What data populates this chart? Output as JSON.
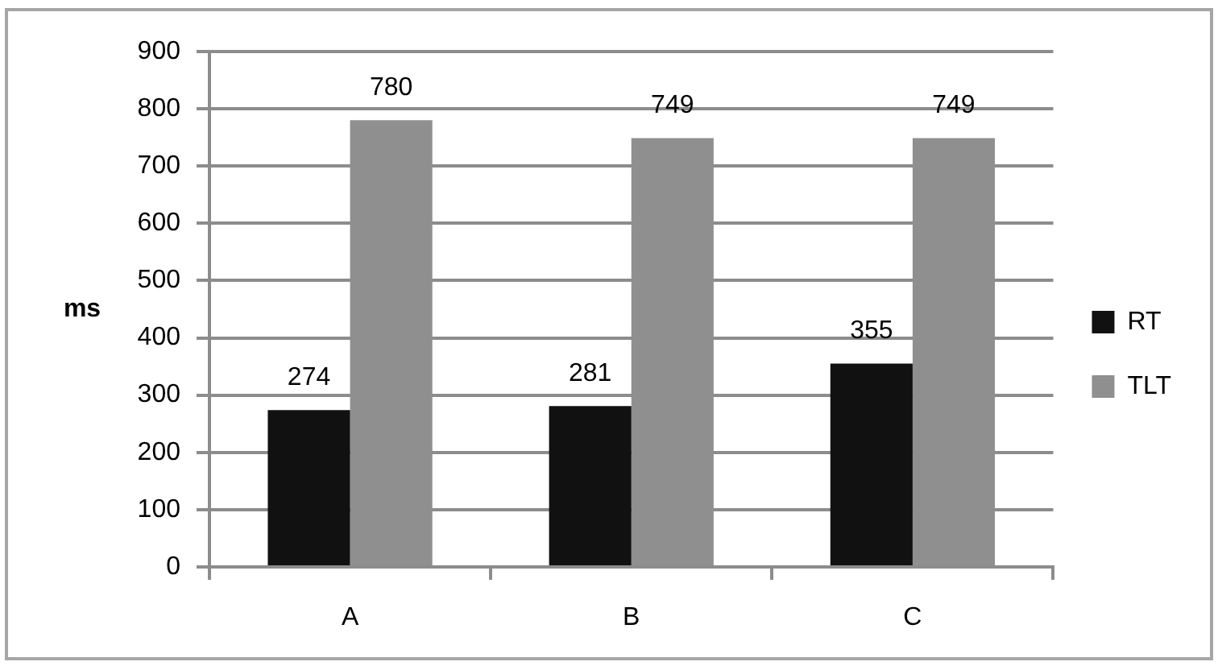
{
  "chart_data": {
    "type": "bar",
    "ylabel": "ms",
    "categories": [
      "A",
      "B",
      "C"
    ],
    "series": [
      {
        "name": "RT",
        "color": "#111111",
        "values": [
          274,
          281,
          355
        ]
      },
      {
        "name": "TLT",
        "color": "#8f8f8f",
        "values": [
          780,
          749,
          749
        ]
      }
    ],
    "ylim": [
      0,
      900
    ],
    "yticks": [
      0,
      100,
      200,
      300,
      400,
      500,
      600,
      700,
      800,
      900
    ],
    "grid": "y",
    "legend": "right",
    "data_labels": true
  }
}
